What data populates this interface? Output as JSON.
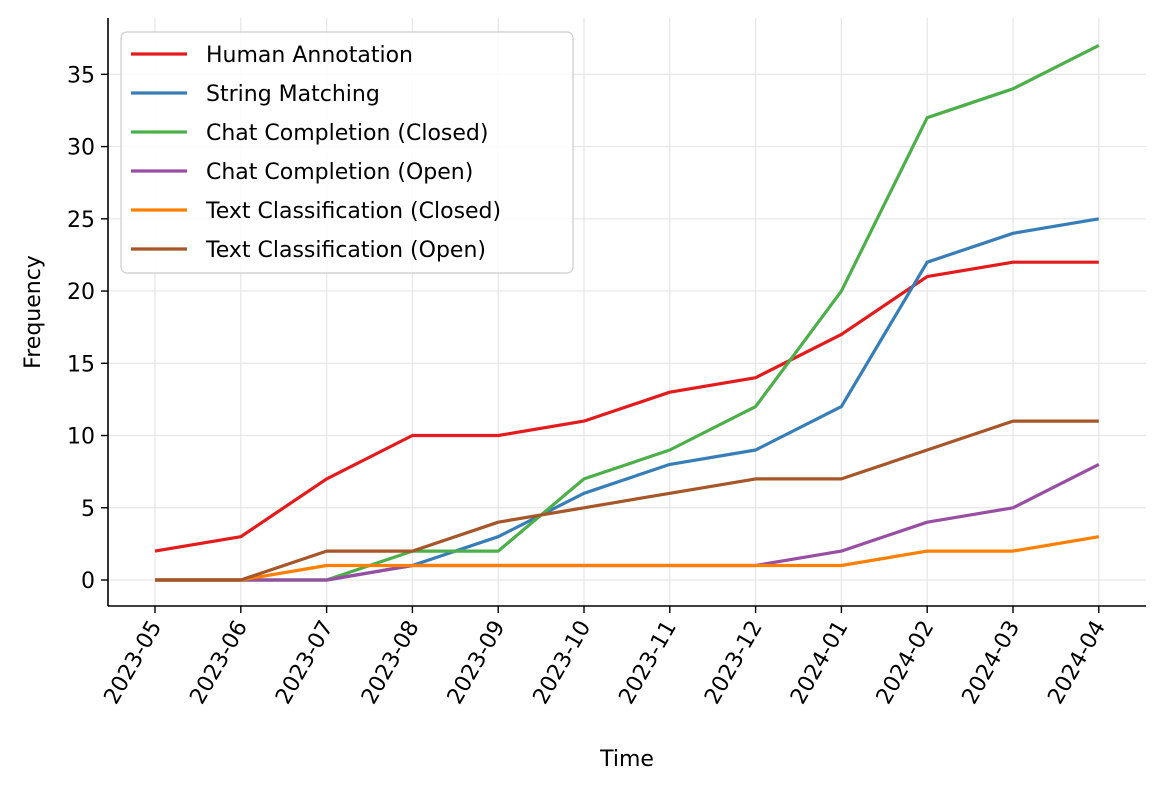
{
  "chart_data": {
    "type": "line",
    "title": "",
    "xlabel": "Time",
    "ylabel": "Frequency",
    "categories": [
      "2023-05",
      "2023-06",
      "2023-07",
      "2023-08",
      "2023-09",
      "2023-10",
      "2023-11",
      "2023-12",
      "2024-01",
      "2024-02",
      "2024-03",
      "2024-04"
    ],
    "ylim": [
      -1.8,
      38.9
    ],
    "yticks": [
      0,
      5,
      10,
      15,
      20,
      25,
      30,
      35
    ],
    "grid": true,
    "legend_position": "top-left",
    "series": [
      {
        "name": "Human Annotation",
        "color": "#e41a1c",
        "values": [
          2,
          3,
          7,
          10,
          10,
          11,
          13,
          14,
          17,
          21,
          22,
          22
        ]
      },
      {
        "name": "String Matching",
        "color": "#377eb8",
        "values": [
          0,
          0,
          0,
          1,
          3,
          6,
          8,
          9,
          12,
          22,
          24,
          25
        ]
      },
      {
        "name": "Chat Completion (Closed)",
        "color": "#4daf4a",
        "values": [
          0,
          0,
          0,
          2,
          2,
          7,
          9,
          12,
          20,
          32,
          34,
          37
        ]
      },
      {
        "name": "Chat Completion (Open)",
        "color": "#984ea3",
        "values": [
          0,
          0,
          0,
          1,
          1,
          1,
          1,
          1,
          2,
          4,
          5,
          8
        ]
      },
      {
        "name": "Text Classification (Closed)",
        "color": "#ff7f00",
        "values": [
          0,
          0,
          1,
          1,
          1,
          1,
          1,
          1,
          1,
          2,
          2,
          3
        ]
      },
      {
        "name": "Text Classification (Open)",
        "color": "#a65628",
        "values": [
          0,
          0,
          2,
          2,
          4,
          5,
          6,
          7,
          7,
          9,
          11,
          11
        ]
      }
    ]
  }
}
